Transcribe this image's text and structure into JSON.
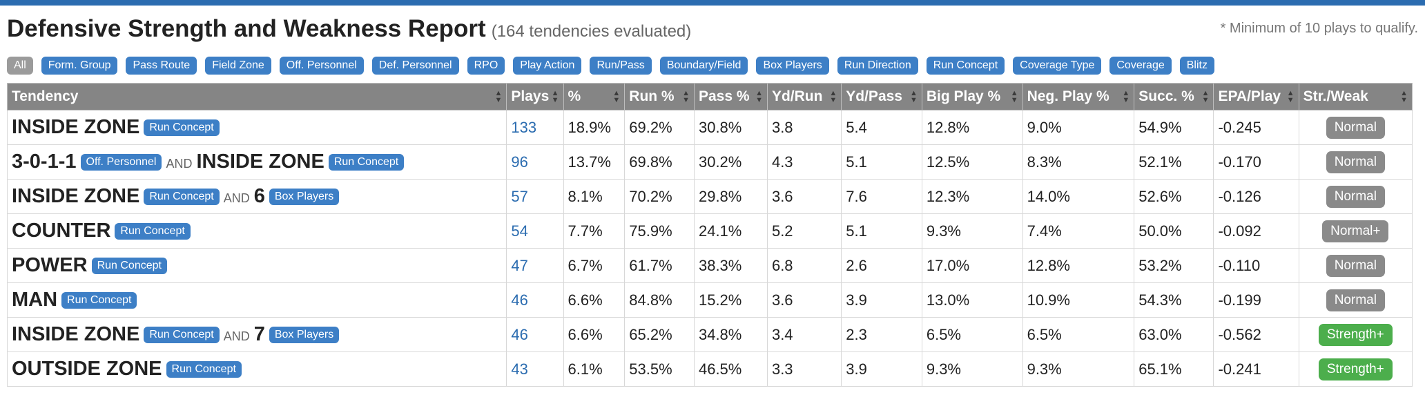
{
  "header": {
    "title": "Defensive Strength and Weakness Report",
    "subtitle": "(164 tendencies evaluated)",
    "note": "* Minimum of 10 plays to qualify."
  },
  "filters": [
    "All",
    "Form. Group",
    "Pass Route",
    "Field Zone",
    "Off. Personnel",
    "Def. Personnel",
    "RPO",
    "Play Action",
    "Run/Pass",
    "Boundary/Field",
    "Box Players",
    "Run Direction",
    "Run Concept",
    "Coverage Type",
    "Coverage",
    "Blitz"
  ],
  "columns": [
    "Tendency",
    "Plays",
    "%",
    "Run %",
    "Pass %",
    "Yd/Run",
    "Yd/Pass",
    "Big Play %",
    "Neg. Play %",
    "Succ. %",
    "EPA/Play",
    "Str./Weak"
  ],
  "colors": {
    "accent": "#3d7fc6",
    "header_bg": "#858585",
    "normal": "#8a8a8a",
    "strength": "#4cae4c"
  },
  "rows": [
    {
      "parts": [
        {
          "text": "INSIDE ZONE",
          "tag": "Run Concept"
        }
      ],
      "plays": "133",
      "pct": "18.9%",
      "run": "69.2%",
      "pass": "30.8%",
      "ydrun": "3.8",
      "ydpass": "5.4",
      "big": "12.8%",
      "neg": "9.0%",
      "succ": "54.9%",
      "epa": "-0.245",
      "sw": "Normal",
      "sw_type": "normal"
    },
    {
      "parts": [
        {
          "text": "3-0-1-1",
          "tag": "Off. Personnel"
        },
        {
          "text": "INSIDE ZONE",
          "tag": "Run Concept"
        }
      ],
      "plays": "96",
      "pct": "13.7%",
      "run": "69.8%",
      "pass": "30.2%",
      "ydrun": "4.3",
      "ydpass": "5.1",
      "big": "12.5%",
      "neg": "8.3%",
      "succ": "52.1%",
      "epa": "-0.170",
      "sw": "Normal",
      "sw_type": "normal"
    },
    {
      "parts": [
        {
          "text": "INSIDE ZONE",
          "tag": "Run Concept"
        },
        {
          "text": "6",
          "tag": "Box Players"
        }
      ],
      "plays": "57",
      "pct": "8.1%",
      "run": "70.2%",
      "pass": "29.8%",
      "ydrun": "3.6",
      "ydpass": "7.6",
      "big": "12.3%",
      "neg": "14.0%",
      "succ": "52.6%",
      "epa": "-0.126",
      "sw": "Normal",
      "sw_type": "normal"
    },
    {
      "parts": [
        {
          "text": "COUNTER",
          "tag": "Run Concept"
        }
      ],
      "plays": "54",
      "pct": "7.7%",
      "run": "75.9%",
      "pass": "24.1%",
      "ydrun": "5.2",
      "ydpass": "5.1",
      "big": "9.3%",
      "neg": "7.4%",
      "succ": "50.0%",
      "epa": "-0.092",
      "sw": "Normal+",
      "sw_type": "normal"
    },
    {
      "parts": [
        {
          "text": "POWER",
          "tag": "Run Concept"
        }
      ],
      "plays": "47",
      "pct": "6.7%",
      "run": "61.7%",
      "pass": "38.3%",
      "ydrun": "6.8",
      "ydpass": "2.6",
      "big": "17.0%",
      "neg": "12.8%",
      "succ": "53.2%",
      "epa": "-0.110",
      "sw": "Normal",
      "sw_type": "normal"
    },
    {
      "parts": [
        {
          "text": "MAN",
          "tag": "Run Concept"
        }
      ],
      "plays": "46",
      "pct": "6.6%",
      "run": "84.8%",
      "pass": "15.2%",
      "ydrun": "3.6",
      "ydpass": "3.9",
      "big": "13.0%",
      "neg": "10.9%",
      "succ": "54.3%",
      "epa": "-0.199",
      "sw": "Normal",
      "sw_type": "normal"
    },
    {
      "parts": [
        {
          "text": "INSIDE ZONE",
          "tag": "Run Concept"
        },
        {
          "text": "7",
          "tag": "Box Players"
        }
      ],
      "plays": "46",
      "pct": "6.6%",
      "run": "65.2%",
      "pass": "34.8%",
      "ydrun": "3.4",
      "ydpass": "2.3",
      "big": "6.5%",
      "neg": "6.5%",
      "succ": "63.0%",
      "epa": "-0.562",
      "sw": "Strength+",
      "sw_type": "strength"
    },
    {
      "parts": [
        {
          "text": "OUTSIDE ZONE",
          "tag": "Run Concept"
        }
      ],
      "plays": "43",
      "pct": "6.1%",
      "run": "53.5%",
      "pass": "46.5%",
      "ydrun": "3.3",
      "ydpass": "3.9",
      "big": "9.3%",
      "neg": "9.3%",
      "succ": "65.1%",
      "epa": "-0.241",
      "sw": "Strength+",
      "sw_type": "strength"
    }
  ],
  "and_word": "AND"
}
